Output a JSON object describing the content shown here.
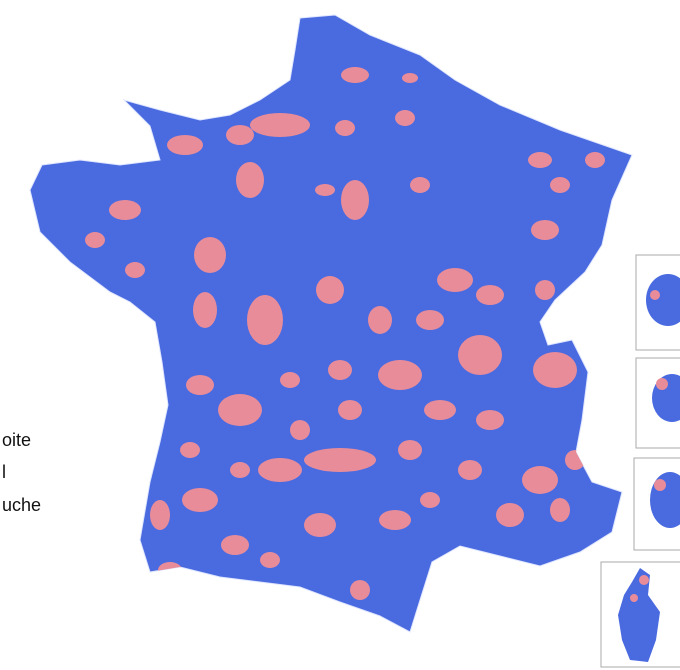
{
  "legend": {
    "items": [
      "oite",
      "l",
      "uche"
    ]
  }
}
